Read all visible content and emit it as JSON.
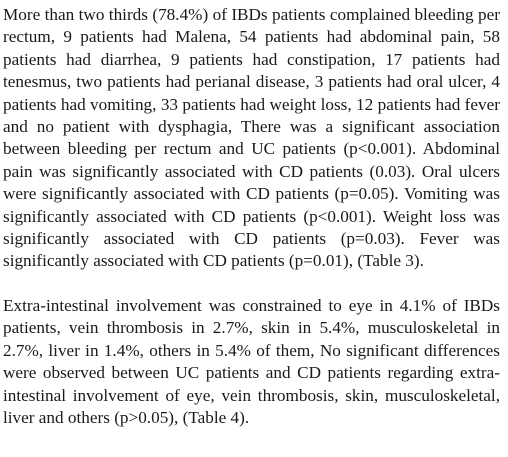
{
  "paragraphs": [
    "More than two thirds (78.4%) of IBDs patients complained bleeding per rectum, 9 patients had Malena, 54 patients had abdominal pain, 58 patients had diarrhea, 9 patients had constipation, 17 patients had tenesmus, two patients had perianal disease, 3 patients had oral ulcer, 4 patients had vomiting, 33 patients had weight loss, 12 patients had fever and no patient with dysphagia, There was a significant association between bleeding per rectum and UC patients (p<0.001). Abdominal pain was significantly associated with CD patients (0.03). Oral ulcers were significantly associated with CD patients (p=0.05). Vomiting was significantly associated with CD patients (p<0.001). Weight loss was significantly associated with CD patients (p=0.03). Fever was significantly associated with CD patients (p=0.01), (Table 3).",
    "Extra-intestinal involvement was constrained to eye in 4.1% of IBDs patients, vein thrombosis in 2.7%, skin in 5.4%, musculoskeletal in 2.7%, liver in 1.4%, others in 5.4% of them, No significant differences were observed between UC patients and CD patients regarding extra-intestinal involvement of eye, vein thrombosis, skin, musculoskeletal, liver and others (p>0.05), (Table 4)."
  ]
}
